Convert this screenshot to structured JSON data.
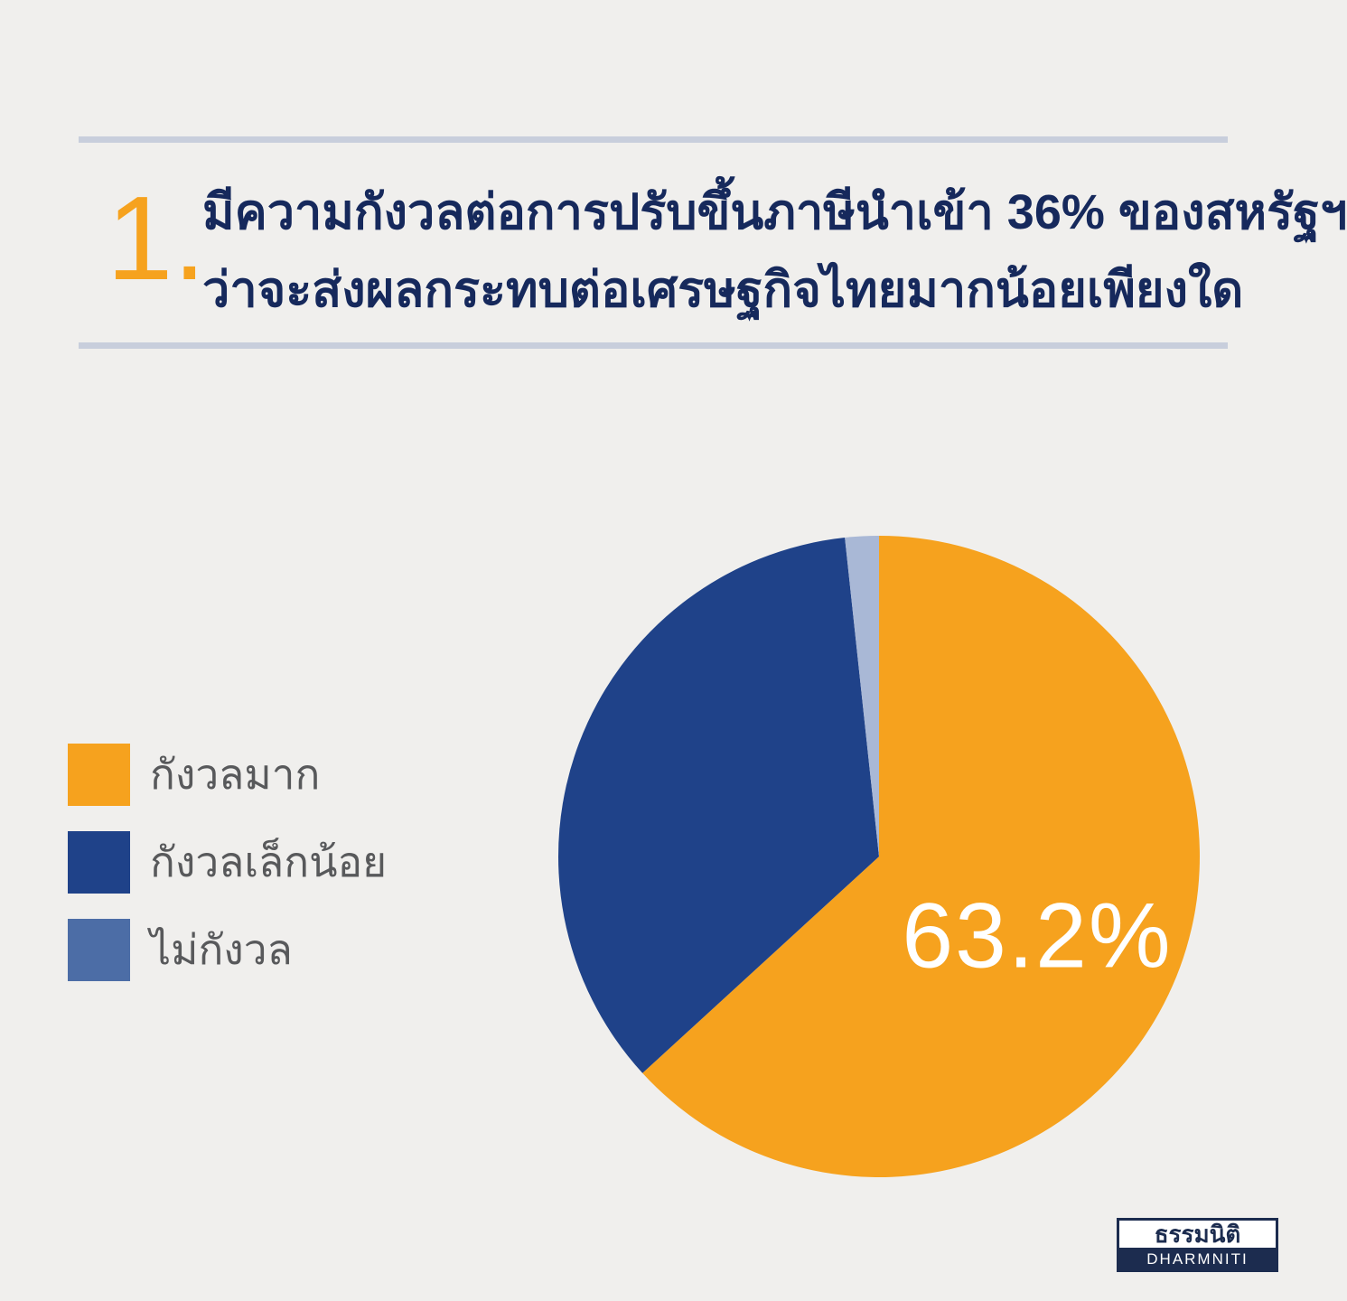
{
  "page": {
    "background_color": "#F0EFED",
    "divider_color": "#C8CEDC"
  },
  "header": {
    "number": "1.",
    "number_color": "#F6A21E",
    "title_line1": "มีความกังวลต่อการปรับขึ้นภาษีนำเข้า 36% ของสหรัฐฯ",
    "title_line2": "ว่าจะส่งผลกระทบต่อเศรษฐกิจไทยมากน้อยเพียงใด",
    "title_color": "#16295C"
  },
  "legend": {
    "text_color": "#58595B",
    "items": [
      {
        "label": "กังวลมาก",
        "color": "#F6A21E"
      },
      {
        "label": "กังวลเล็กน้อย",
        "color": "#1F4289"
      },
      {
        "label": "ไม่กังวล",
        "color": "#4C6DA6"
      }
    ]
  },
  "chart_data": {
    "type": "pie",
    "categories": [
      "กังวลมาก",
      "กังวลเล็กน้อย",
      "ไม่กังวล"
    ],
    "values": [
      63.2,
      35.1,
      1.7
    ],
    "colors": [
      "#F6A21E",
      "#1F4289",
      "#A9B8D6"
    ],
    "data_label": "63.2%",
    "data_label_color": "#FFFFFF",
    "start_angle_deg": -90,
    "direction": "clockwise",
    "legend_position": "left",
    "title": ""
  },
  "footer_logo": {
    "thai_name": "ธรรมนิติ",
    "latin_name": "DHARMNITI",
    "navy_color": "#1C2C4F"
  }
}
